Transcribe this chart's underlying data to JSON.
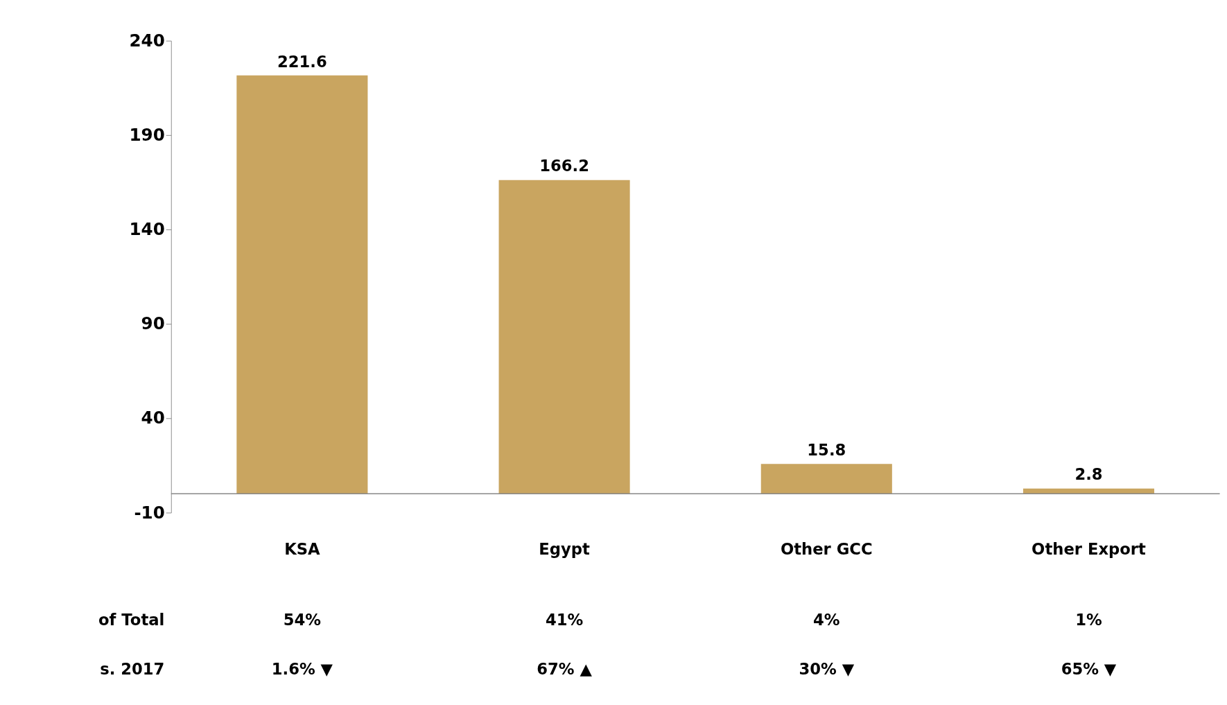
{
  "chart_data": {
    "type": "bar",
    "categories": [
      "KSA",
      "Egypt",
      "Other GCC",
      "Other Export"
    ],
    "values": [
      221.6,
      166.2,
      15.8,
      2.8
    ],
    "color": "#c9a560",
    "ylim": [
      -10,
      240
    ],
    "yticks": [
      -10,
      40,
      90,
      140,
      190,
      240
    ],
    "data_labels": true,
    "grid": false,
    "annotations": [
      "of Total",
      "54%",
      "41%",
      "4%",
      "1%",
      "s. 2017",
      "1.6% ▼",
      "67% ▲",
      "30% ▼",
      "65% ▼"
    ]
  }
}
